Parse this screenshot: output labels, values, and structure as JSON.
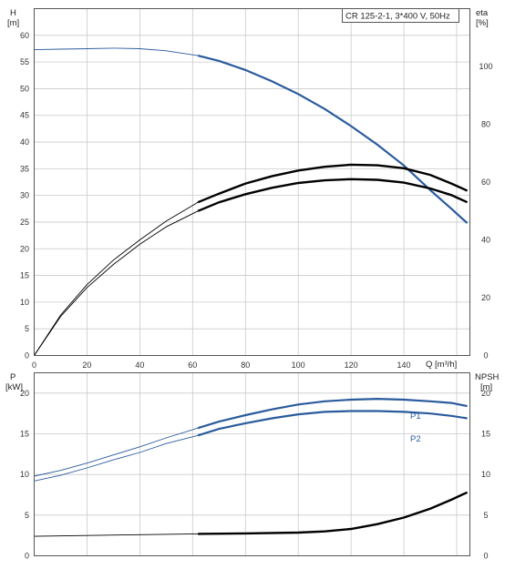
{
  "chart_data": [
    {
      "type": "line",
      "title": "CR 125-2-1, 3*400 V, 50Hz",
      "xlabel": "Q [m³/h]",
      "x_ticks": [
        "0",
        "20",
        "40",
        "60",
        "80",
        "100",
        "120",
        "140"
      ],
      "xlim": [
        0,
        165
      ],
      "y_left_label": [
        "H",
        "[m]"
      ],
      "ylim_left": [
        0,
        65
      ],
      "y_left_ticks": [
        "0",
        "5",
        "10",
        "15",
        "20",
        "25",
        "30",
        "35",
        "40",
        "45",
        "50",
        "55",
        "60"
      ],
      "y_right_label": [
        "eta",
        "[%]"
      ],
      "ylim_right": [
        0,
        120
      ],
      "y_right_ticks": [
        "0",
        "20",
        "40",
        "60",
        "80",
        "100"
      ],
      "grid": true,
      "series": [
        {
          "axis": "left",
          "color": "#2a5b9c",
          "style": "head",
          "x": [
            0,
            10,
            20,
            30,
            40,
            50,
            62,
            70,
            80,
            90,
            100,
            110,
            120,
            130,
            140,
            150,
            158,
            164
          ],
          "y": [
            57.3,
            57.4,
            57.5,
            57.6,
            57.5,
            57.1,
            56.2,
            55.2,
            53.5,
            51.4,
            49.0,
            46.2,
            43.0,
            39.5,
            35.6,
            31.0,
            27.5,
            24.8
          ]
        },
        {
          "axis": "right",
          "color": "#000000",
          "style": "eta-upper",
          "x": [
            0,
            10,
            20,
            30,
            40,
            50,
            62,
            70,
            80,
            90,
            100,
            110,
            120,
            130,
            140,
            150,
            158,
            164
          ],
          "y": [
            0,
            14,
            24.5,
            33,
            40,
            46.5,
            53,
            56,
            59.5,
            62,
            64,
            65.3,
            66,
            65.8,
            64.8,
            62.5,
            59.5,
            57
          ]
        },
        {
          "axis": "right",
          "color": "#000000",
          "style": "eta-lower",
          "x": [
            0,
            10,
            20,
            30,
            40,
            50,
            62,
            70,
            80,
            90,
            100,
            110,
            120,
            130,
            140,
            150,
            158,
            164
          ],
          "y": [
            0,
            13.5,
            23.5,
            31.5,
            38.5,
            44.5,
            50,
            53,
            55.8,
            58,
            59.7,
            60.6,
            61,
            60.8,
            59.8,
            57.8,
            55.5,
            53
          ]
        }
      ]
    },
    {
      "type": "line",
      "xlim": [
        0,
        165
      ],
      "y_left_label": [
        "P",
        "[kW]"
      ],
      "ylim_left": [
        0,
        22.5
      ],
      "y_left_ticks": [
        "0",
        "5",
        "10",
        "15",
        "20"
      ],
      "y_right_label": [
        "NPSH",
        "[m]"
      ],
      "ylim_right": [
        0,
        22.5
      ],
      "y_right_ticks": [
        "0",
        "5",
        "10",
        "15",
        "20"
      ],
      "grid": true,
      "series": [
        {
          "name": "P1",
          "axis": "left",
          "color": "#2a5b9c",
          "x": [
            0,
            10,
            20,
            30,
            40,
            50,
            62,
            70,
            80,
            90,
            100,
            110,
            120,
            130,
            140,
            150,
            158,
            164
          ],
          "y": [
            9.8,
            10.5,
            11.4,
            12.4,
            13.4,
            14.5,
            15.7,
            16.5,
            17.3,
            18.0,
            18.6,
            19.0,
            19.2,
            19.3,
            19.2,
            19.0,
            18.8,
            18.4
          ]
        },
        {
          "name": "P2",
          "axis": "left",
          "color": "#2a5b9c",
          "x": [
            0,
            10,
            20,
            30,
            40,
            50,
            62,
            70,
            80,
            90,
            100,
            110,
            120,
            130,
            140,
            150,
            158,
            164
          ],
          "y": [
            9.2,
            9.9,
            10.8,
            11.8,
            12.7,
            13.8,
            14.8,
            15.6,
            16.3,
            16.9,
            17.4,
            17.7,
            17.8,
            17.8,
            17.7,
            17.5,
            17.2,
            16.9
          ]
        },
        {
          "name": "",
          "axis": "right",
          "color": "#000000",
          "x": [
            0,
            20,
            40,
            62,
            80,
            100,
            110,
            120,
            130,
            140,
            150,
            158,
            164
          ],
          "y": [
            2.4,
            2.5,
            2.6,
            2.7,
            2.75,
            2.85,
            3.0,
            3.3,
            3.9,
            4.7,
            5.8,
            6.9,
            7.8
          ]
        }
      ]
    }
  ]
}
